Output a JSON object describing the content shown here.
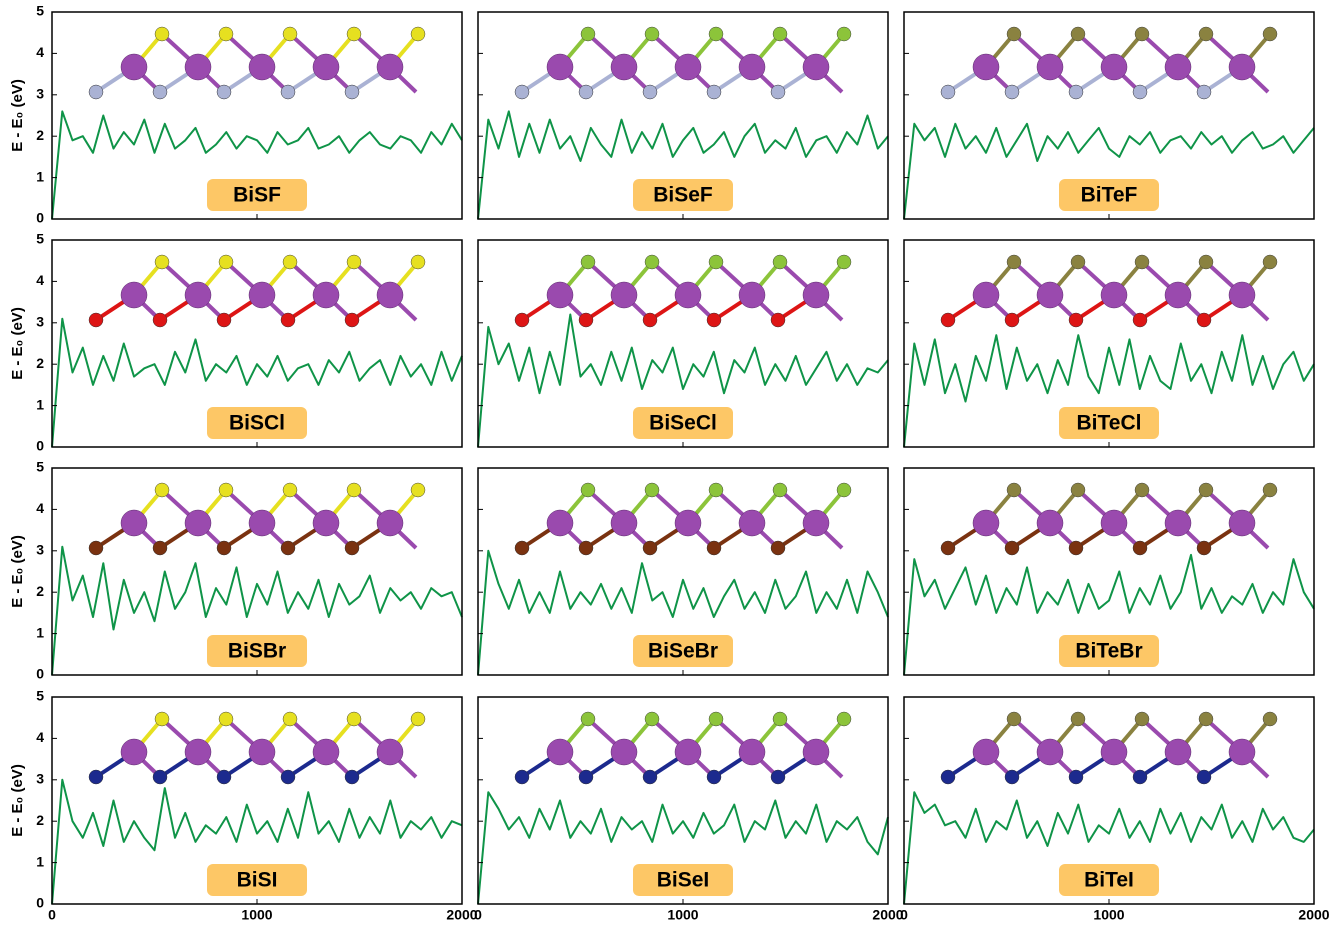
{
  "chart_data": [
    {
      "type": "line",
      "label": "BiSF",
      "y_label": "E - E₀ (eV)",
      "xlim": [
        0,
        2000
      ],
      "ylim": [
        0,
        5
      ],
      "xticks": [
        0,
        1000,
        2000
      ],
      "yticks": [
        0,
        1,
        2,
        3,
        4,
        5
      ],
      "color": "#0f9448",
      "x": [
        0,
        50,
        100,
        150,
        200,
        250,
        300,
        350,
        400,
        450,
        500,
        550,
        600,
        650,
        700,
        750,
        800,
        850,
        900,
        950,
        1000,
        1050,
        1100,
        1150,
        1200,
        1250,
        1300,
        1350,
        1400,
        1450,
        1500,
        1550,
        1600,
        1650,
        1700,
        1750,
        1800,
        1850,
        1900,
        1950,
        2000
      ],
      "values": [
        0,
        2.6,
        1.9,
        2.0,
        1.6,
        2.5,
        1.7,
        2.1,
        1.8,
        2.4,
        1.6,
        2.3,
        1.7,
        1.9,
        2.2,
        1.6,
        1.8,
        2.1,
        1.7,
        2.0,
        1.9,
        1.6,
        2.1,
        1.8,
        1.9,
        2.2,
        1.7,
        1.8,
        2.0,
        1.6,
        1.9,
        2.1,
        1.8,
        1.7,
        2.0,
        1.9,
        1.6,
        2.1,
        1.8,
        2.3,
        1.9
      ]
    },
    {
      "type": "line",
      "label": "BiSeF",
      "xlim": [
        0,
        2000
      ],
      "ylim": [
        0,
        5
      ],
      "xticks": [
        0,
        1000,
        2000
      ],
      "yticks": [
        0,
        1,
        2,
        3,
        4,
        5
      ],
      "color": "#0f9448",
      "x": [
        0,
        50,
        100,
        150,
        200,
        250,
        300,
        350,
        400,
        450,
        500,
        550,
        600,
        650,
        700,
        750,
        800,
        850,
        900,
        950,
        1000,
        1050,
        1100,
        1150,
        1200,
        1250,
        1300,
        1350,
        1400,
        1450,
        1500,
        1550,
        1600,
        1650,
        1700,
        1750,
        1800,
        1850,
        1900,
        1950,
        2000
      ],
      "values": [
        0,
        2.4,
        1.7,
        2.6,
        1.5,
        2.3,
        1.6,
        2.4,
        1.7,
        2.0,
        1.4,
        2.2,
        1.8,
        1.5,
        2.4,
        1.6,
        2.1,
        1.7,
        2.3,
        1.5,
        1.9,
        2.2,
        1.6,
        1.8,
        2.1,
        1.5,
        2.0,
        2.3,
        1.6,
        1.9,
        1.7,
        2.2,
        1.5,
        1.9,
        2.0,
        1.6,
        2.1,
        1.8,
        2.5,
        1.7,
        2.0
      ]
    },
    {
      "type": "line",
      "label": "BiTeF",
      "xlim": [
        0,
        2000
      ],
      "ylim": [
        0,
        5
      ],
      "xticks": [
        0,
        1000,
        2000
      ],
      "yticks": [
        0,
        1,
        2,
        3,
        4,
        5
      ],
      "color": "#0f9448",
      "x": [
        0,
        50,
        100,
        150,
        200,
        250,
        300,
        350,
        400,
        450,
        500,
        550,
        600,
        650,
        700,
        750,
        800,
        850,
        900,
        950,
        1000,
        1050,
        1100,
        1150,
        1200,
        1250,
        1300,
        1350,
        1400,
        1450,
        1500,
        1550,
        1600,
        1650,
        1700,
        1750,
        1800,
        1850,
        1900,
        1950,
        2000
      ],
      "values": [
        0,
        2.3,
        1.9,
        2.2,
        1.5,
        2.3,
        1.7,
        2.0,
        1.6,
        2.2,
        1.5,
        1.9,
        2.3,
        1.4,
        2.0,
        1.7,
        2.1,
        1.6,
        1.9,
        2.2,
        1.7,
        1.5,
        2.0,
        1.8,
        2.1,
        1.6,
        1.9,
        2.0,
        1.7,
        2.1,
        1.8,
        2.0,
        1.6,
        1.9,
        2.1,
        1.7,
        1.8,
        2.0,
        1.6,
        1.9,
        2.2
      ]
    },
    {
      "type": "line",
      "label": "BiSCl",
      "y_label": "E - E₀ (eV)",
      "xlim": [
        0,
        2000
      ],
      "ylim": [
        0,
        5
      ],
      "xticks": [
        0,
        1000,
        2000
      ],
      "yticks": [
        0,
        1,
        2,
        3,
        4,
        5
      ],
      "color": "#0f9448",
      "x": [
        0,
        50,
        100,
        150,
        200,
        250,
        300,
        350,
        400,
        450,
        500,
        550,
        600,
        650,
        700,
        750,
        800,
        850,
        900,
        950,
        1000,
        1050,
        1100,
        1150,
        1200,
        1250,
        1300,
        1350,
        1400,
        1450,
        1500,
        1550,
        1600,
        1650,
        1700,
        1750,
        1800,
        1850,
        1900,
        1950,
        2000
      ],
      "values": [
        0,
        3.1,
        1.8,
        2.4,
        1.5,
        2.2,
        1.6,
        2.5,
        1.7,
        1.9,
        2.0,
        1.5,
        2.3,
        1.8,
        2.6,
        1.6,
        2.0,
        1.8,
        2.2,
        1.5,
        2.0,
        1.7,
        2.2,
        1.6,
        1.9,
        2.0,
        1.5,
        2.1,
        1.8,
        2.3,
        1.6,
        1.9,
        2.1,
        1.5,
        2.2,
        1.7,
        2.0,
        1.5,
        2.3,
        1.6,
        2.2
      ]
    },
    {
      "type": "line",
      "label": "BiSeCl",
      "xlim": [
        0,
        2000
      ],
      "ylim": [
        0,
        5
      ],
      "xticks": [
        0,
        1000,
        2000
      ],
      "yticks": [
        0,
        1,
        2,
        3,
        4,
        5
      ],
      "color": "#0f9448",
      "x": [
        0,
        50,
        100,
        150,
        200,
        250,
        300,
        350,
        400,
        450,
        500,
        550,
        600,
        650,
        700,
        750,
        800,
        850,
        900,
        950,
        1000,
        1050,
        1100,
        1150,
        1200,
        1250,
        1300,
        1350,
        1400,
        1450,
        1500,
        1550,
        1600,
        1650,
        1700,
        1750,
        1800,
        1850,
        1900,
        1950,
        2000
      ],
      "values": [
        0,
        2.9,
        2.0,
        2.5,
        1.6,
        2.4,
        1.3,
        2.3,
        1.5,
        3.2,
        1.7,
        2.0,
        1.5,
        2.3,
        1.6,
        2.4,
        1.4,
        2.1,
        1.8,
        2.4,
        1.4,
        2.0,
        1.7,
        2.3,
        1.3,
        2.1,
        1.8,
        2.4,
        1.5,
        2.0,
        1.6,
        2.2,
        1.5,
        1.9,
        2.3,
        1.6,
        2.0,
        1.5,
        1.9,
        1.8,
        2.1
      ]
    },
    {
      "type": "line",
      "label": "BiTeCl",
      "xlim": [
        0,
        2000
      ],
      "ylim": [
        0,
        5
      ],
      "xticks": [
        0,
        1000,
        2000
      ],
      "yticks": [
        0,
        1,
        2,
        3,
        4,
        5
      ],
      "color": "#0f9448",
      "x": [
        0,
        50,
        100,
        150,
        200,
        250,
        300,
        350,
        400,
        450,
        500,
        550,
        600,
        650,
        700,
        750,
        800,
        850,
        900,
        950,
        1000,
        1050,
        1100,
        1150,
        1200,
        1250,
        1300,
        1350,
        1400,
        1450,
        1500,
        1550,
        1600,
        1650,
        1700,
        1750,
        1800,
        1850,
        1900,
        1950,
        2000
      ],
      "values": [
        0,
        2.5,
        1.5,
        2.6,
        1.3,
        2.0,
        1.1,
        2.2,
        1.6,
        2.7,
        1.4,
        2.4,
        1.6,
        2.0,
        1.3,
        2.1,
        1.5,
        2.7,
        1.7,
        1.3,
        2.4,
        1.5,
        2.6,
        1.4,
        2.2,
        1.6,
        1.4,
        2.5,
        1.6,
        2.0,
        1.3,
        2.3,
        1.6,
        2.7,
        1.5,
        2.2,
        1.4,
        2.0,
        2.3,
        1.6,
        2.0
      ]
    },
    {
      "type": "line",
      "label": "BiSBr",
      "y_label": "E - E₀ (eV)",
      "xlim": [
        0,
        2000
      ],
      "ylim": [
        0,
        5
      ],
      "xticks": [
        0,
        1000,
        2000
      ],
      "yticks": [
        0,
        1,
        2,
        3,
        4,
        5
      ],
      "color": "#0f9448",
      "x": [
        0,
        50,
        100,
        150,
        200,
        250,
        300,
        350,
        400,
        450,
        500,
        550,
        600,
        650,
        700,
        750,
        800,
        850,
        900,
        950,
        1000,
        1050,
        1100,
        1150,
        1200,
        1250,
        1300,
        1350,
        1400,
        1450,
        1500,
        1550,
        1600,
        1650,
        1700,
        1750,
        1800,
        1850,
        1900,
        1950,
        2000
      ],
      "values": [
        0,
        3.1,
        1.8,
        2.4,
        1.4,
        2.7,
        1.1,
        2.3,
        1.5,
        2.0,
        1.3,
        2.5,
        1.6,
        2.0,
        2.7,
        1.4,
        2.1,
        1.7,
        2.6,
        1.4,
        2.2,
        1.7,
        2.5,
        1.5,
        2.0,
        1.6,
        2.3,
        1.4,
        2.2,
        1.7,
        1.9,
        2.4,
        1.5,
        2.1,
        1.8,
        2.0,
        1.6,
        2.1,
        1.9,
        2.0,
        1.4
      ]
    },
    {
      "type": "line",
      "label": "BiSeBr",
      "xlim": [
        0,
        2000
      ],
      "ylim": [
        0,
        5
      ],
      "xticks": [
        0,
        1000,
        2000
      ],
      "yticks": [
        0,
        1,
        2,
        3,
        4,
        5
      ],
      "color": "#0f9448",
      "x": [
        0,
        50,
        100,
        150,
        200,
        250,
        300,
        350,
        400,
        450,
        500,
        550,
        600,
        650,
        700,
        750,
        800,
        850,
        900,
        950,
        1000,
        1050,
        1100,
        1150,
        1200,
        1250,
        1300,
        1350,
        1400,
        1450,
        1500,
        1550,
        1600,
        1650,
        1700,
        1750,
        1800,
        1850,
        1900,
        1950,
        2000
      ],
      "values": [
        0,
        3.0,
        2.2,
        1.6,
        2.3,
        1.5,
        2.0,
        1.5,
        2.5,
        1.6,
        2.0,
        1.7,
        2.2,
        1.6,
        2.1,
        1.5,
        2.7,
        1.8,
        2.0,
        1.4,
        2.3,
        1.6,
        2.1,
        1.4,
        1.9,
        2.3,
        1.6,
        2.0,
        1.5,
        2.3,
        1.6,
        1.9,
        2.5,
        1.5,
        2.0,
        1.6,
        2.3,
        1.5,
        2.5,
        2.0,
        1.4
      ]
    },
    {
      "type": "line",
      "label": "BiTeBr",
      "xlim": [
        0,
        2000
      ],
      "ylim": [
        0,
        5
      ],
      "xticks": [
        0,
        1000,
        2000
      ],
      "yticks": [
        0,
        1,
        2,
        3,
        4,
        5
      ],
      "color": "#0f9448",
      "x": [
        0,
        50,
        100,
        150,
        200,
        250,
        300,
        350,
        400,
        450,
        500,
        550,
        600,
        650,
        700,
        750,
        800,
        850,
        900,
        950,
        1000,
        1050,
        1100,
        1150,
        1200,
        1250,
        1300,
        1350,
        1400,
        1450,
        1500,
        1550,
        1600,
        1650,
        1700,
        1750,
        1800,
        1850,
        1900,
        1950,
        2000
      ],
      "values": [
        0,
        2.8,
        1.9,
        2.3,
        1.6,
        2.1,
        2.6,
        1.7,
        2.4,
        1.5,
        2.1,
        1.7,
        2.6,
        1.5,
        2.0,
        1.7,
        2.3,
        1.5,
        2.2,
        1.6,
        1.8,
        2.5,
        1.5,
        2.1,
        1.7,
        2.4,
        1.6,
        2.0,
        2.9,
        1.6,
        2.1,
        1.5,
        1.9,
        1.7,
        2.2,
        1.5,
        2.0,
        1.7,
        2.8,
        2.0,
        1.6
      ]
    },
    {
      "type": "line",
      "label": "BiSI",
      "y_label": "E - E₀ (eV)",
      "xlim": [
        0,
        2000
      ],
      "ylim": [
        0,
        5
      ],
      "xticks": [
        0,
        1000,
        2000
      ],
      "yticks": [
        0,
        1,
        2,
        3,
        4,
        5
      ],
      "color": "#0f9448",
      "x": [
        0,
        50,
        100,
        150,
        200,
        250,
        300,
        350,
        400,
        450,
        500,
        550,
        600,
        650,
        700,
        750,
        800,
        850,
        900,
        950,
        1000,
        1050,
        1100,
        1150,
        1200,
        1250,
        1300,
        1350,
        1400,
        1450,
        1500,
        1550,
        1600,
        1650,
        1700,
        1750,
        1800,
        1850,
        1900,
        1950,
        2000
      ],
      "values": [
        0,
        3.0,
        2.0,
        1.6,
        2.2,
        1.4,
        2.5,
        1.5,
        2.0,
        1.6,
        1.3,
        2.8,
        1.6,
        2.2,
        1.5,
        1.9,
        1.7,
        2.1,
        1.5,
        2.4,
        1.7,
        2.0,
        1.5,
        2.3,
        1.6,
        2.7,
        1.7,
        2.0,
        1.5,
        2.3,
        1.6,
        2.1,
        1.7,
        2.5,
        1.6,
        2.0,
        1.8,
        2.1,
        1.6,
        2.0,
        1.9
      ]
    },
    {
      "type": "line",
      "label": "BiSeI",
      "xlim": [
        0,
        2000
      ],
      "ylim": [
        0,
        5
      ],
      "xticks": [
        0,
        1000,
        2000
      ],
      "yticks": [
        0,
        1,
        2,
        3,
        4,
        5
      ],
      "color": "#0f9448",
      "x": [
        0,
        50,
        100,
        150,
        200,
        250,
        300,
        350,
        400,
        450,
        500,
        550,
        600,
        650,
        700,
        750,
        800,
        850,
        900,
        950,
        1000,
        1050,
        1100,
        1150,
        1200,
        1250,
        1300,
        1350,
        1400,
        1450,
        1500,
        1550,
        1600,
        1650,
        1700,
        1750,
        1800,
        1850,
        1900,
        1950,
        2000
      ],
      "values": [
        0,
        2.7,
        2.3,
        1.8,
        2.1,
        1.6,
        2.3,
        1.8,
        2.5,
        1.6,
        2.0,
        1.7,
        2.3,
        1.5,
        2.1,
        1.8,
        2.0,
        1.5,
        2.4,
        1.7,
        2.0,
        1.6,
        2.2,
        1.7,
        1.9,
        2.4,
        1.5,
        2.0,
        1.8,
        2.5,
        1.6,
        2.0,
        1.7,
        2.4,
        1.5,
        2.0,
        1.8,
        2.1,
        1.5,
        1.2,
        2.1
      ]
    },
    {
      "type": "line",
      "label": "BiTeI",
      "xlim": [
        0,
        2000
      ],
      "ylim": [
        0,
        5
      ],
      "xticks": [
        0,
        1000,
        2000
      ],
      "yticks": [
        0,
        1,
        2,
        3,
        4,
        5
      ],
      "color": "#0f9448",
      "x": [
        0,
        50,
        100,
        150,
        200,
        250,
        300,
        350,
        400,
        450,
        500,
        550,
        600,
        650,
        700,
        750,
        800,
        850,
        900,
        950,
        1000,
        1050,
        1100,
        1150,
        1200,
        1250,
        1300,
        1350,
        1400,
        1450,
        1500,
        1550,
        1600,
        1650,
        1700,
        1750,
        1800,
        1850,
        1900,
        1950,
        2000
      ],
      "values": [
        0,
        2.7,
        2.2,
        2.4,
        1.9,
        2.0,
        1.6,
        2.3,
        1.5,
        2.0,
        1.8,
        2.5,
        1.6,
        2.0,
        1.4,
        2.2,
        1.7,
        2.4,
        1.5,
        1.9,
        1.7,
        2.3,
        1.6,
        2.0,
        1.5,
        2.3,
        1.7,
        2.2,
        1.5,
        2.1,
        1.8,
        2.4,
        1.6,
        2.0,
        1.5,
        2.3,
        1.8,
        2.1,
        1.6,
        1.5,
        1.8
      ]
    }
  ]
}
